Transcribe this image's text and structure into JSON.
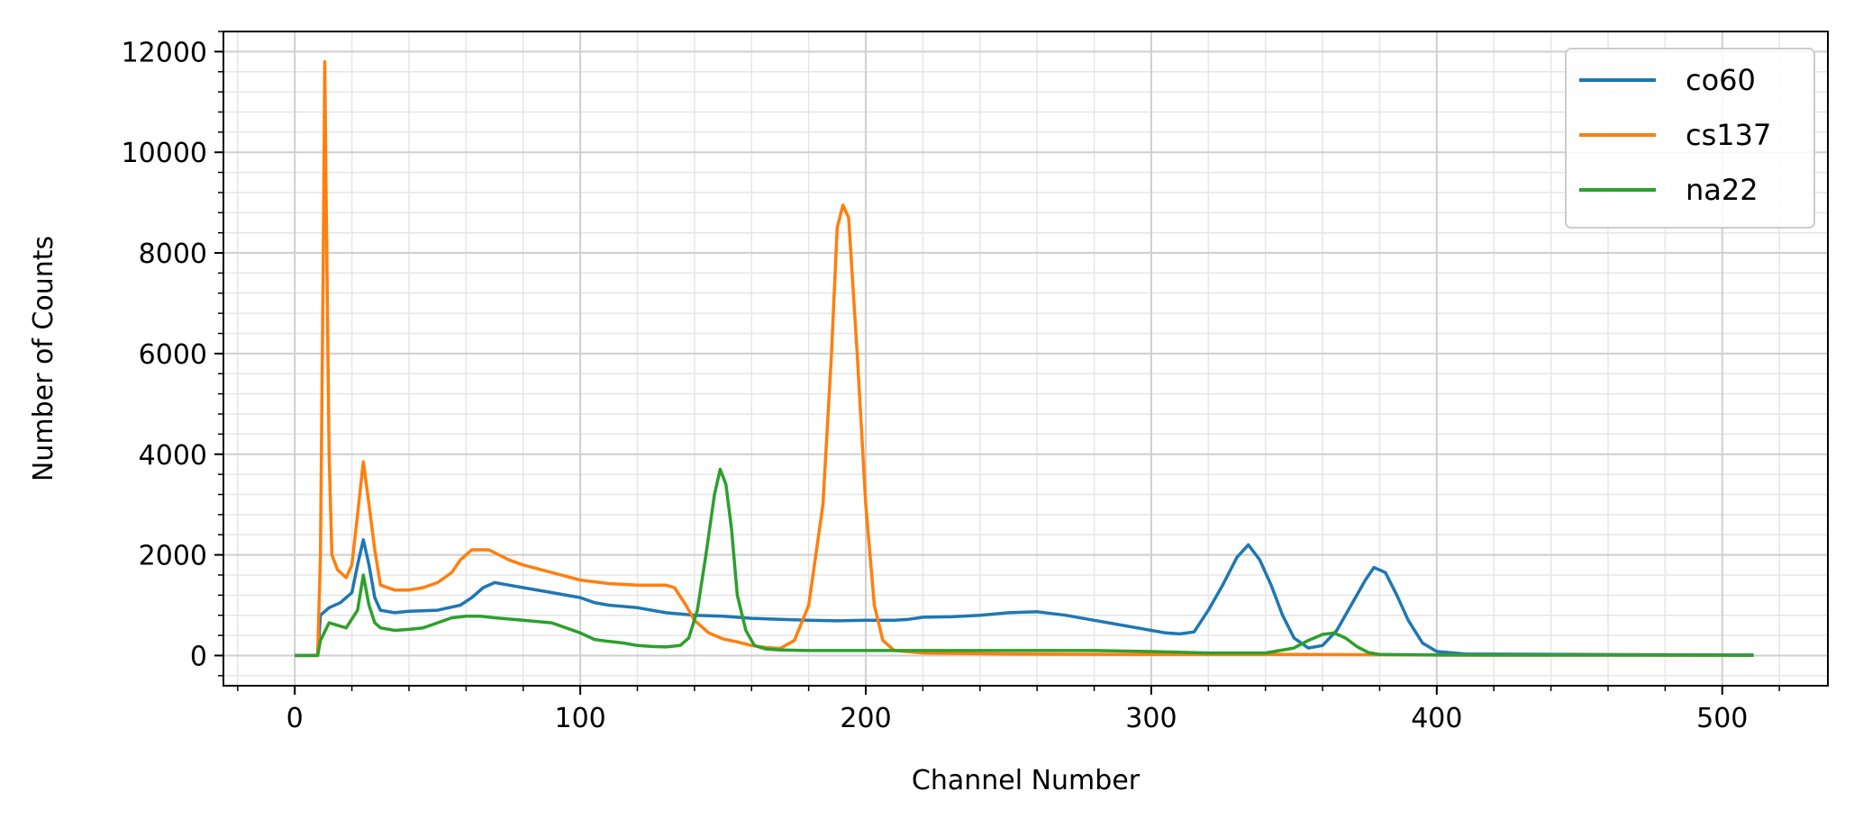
{
  "chart_data": {
    "type": "line",
    "title": "",
    "xlabel": "Channel Number",
    "ylabel": "Number of Counts",
    "xlim": [
      -25,
      537
    ],
    "ylim": [
      -600,
      12400
    ],
    "xticks": [
      0,
      100,
      200,
      300,
      400,
      500
    ],
    "yticks": [
      0,
      2000,
      4000,
      6000,
      8000,
      10000,
      12000
    ],
    "grid": "major and minor",
    "legend_position": "top-right",
    "series": [
      {
        "name": "co60",
        "color": "#1f77b4",
        "points": [
          [
            0,
            0
          ],
          [
            8,
            0
          ],
          [
            9,
            800
          ],
          [
            12,
            950
          ],
          [
            16,
            1050
          ],
          [
            20,
            1250
          ],
          [
            22,
            1800
          ],
          [
            24,
            2300
          ],
          [
            26,
            1800
          ],
          [
            28,
            1150
          ],
          [
            30,
            900
          ],
          [
            35,
            850
          ],
          [
            40,
            880
          ],
          [
            50,
            900
          ],
          [
            58,
            1000
          ],
          [
            62,
            1150
          ],
          [
            66,
            1350
          ],
          [
            70,
            1450
          ],
          [
            75,
            1400
          ],
          [
            80,
            1350
          ],
          [
            90,
            1250
          ],
          [
            100,
            1150
          ],
          [
            105,
            1050
          ],
          [
            110,
            1000
          ],
          [
            120,
            950
          ],
          [
            130,
            850
          ],
          [
            140,
            800
          ],
          [
            150,
            780
          ],
          [
            160,
            740
          ],
          [
            170,
            720
          ],
          [
            180,
            700
          ],
          [
            190,
            690
          ],
          [
            200,
            700
          ],
          [
            210,
            700
          ],
          [
            215,
            720
          ],
          [
            220,
            760
          ],
          [
            230,
            770
          ],
          [
            240,
            800
          ],
          [
            250,
            850
          ],
          [
            260,
            870
          ],
          [
            270,
            800
          ],
          [
            280,
            700
          ],
          [
            290,
            600
          ],
          [
            300,
            500
          ],
          [
            305,
            450
          ],
          [
            310,
            430
          ],
          [
            315,
            470
          ],
          [
            320,
            900
          ],
          [
            325,
            1400
          ],
          [
            330,
            1950
          ],
          [
            334,
            2200
          ],
          [
            338,
            1900
          ],
          [
            342,
            1400
          ],
          [
            346,
            800
          ],
          [
            350,
            350
          ],
          [
            355,
            150
          ],
          [
            360,
            200
          ],
          [
            365,
            500
          ],
          [
            370,
            1000
          ],
          [
            375,
            1500
          ],
          [
            378,
            1750
          ],
          [
            382,
            1650
          ],
          [
            386,
            1200
          ],
          [
            390,
            700
          ],
          [
            395,
            250
          ],
          [
            400,
            80
          ],
          [
            410,
            30
          ],
          [
            450,
            20
          ],
          [
            511,
            10
          ]
        ]
      },
      {
        "name": "cs137",
        "color": "#ff7f0e",
        "points": [
          [
            0,
            0
          ],
          [
            8,
            0
          ],
          [
            9,
            2000
          ],
          [
            10,
            8000
          ],
          [
            10.5,
            11800
          ],
          [
            11,
            9000
          ],
          [
            12,
            4000
          ],
          [
            13,
            2000
          ],
          [
            15,
            1700
          ],
          [
            18,
            1550
          ],
          [
            20,
            1800
          ],
          [
            22,
            2800
          ],
          [
            24,
            3850
          ],
          [
            26,
            3000
          ],
          [
            28,
            2100
          ],
          [
            30,
            1400
          ],
          [
            35,
            1300
          ],
          [
            40,
            1300
          ],
          [
            45,
            1350
          ],
          [
            50,
            1450
          ],
          [
            55,
            1650
          ],
          [
            58,
            1900
          ],
          [
            62,
            2100
          ],
          [
            68,
            2100
          ],
          [
            75,
            1900
          ],
          [
            80,
            1800
          ],
          [
            90,
            1650
          ],
          [
            100,
            1500
          ],
          [
            110,
            1430
          ],
          [
            120,
            1400
          ],
          [
            130,
            1400
          ],
          [
            133,
            1350
          ],
          [
            137,
            1000
          ],
          [
            140,
            700
          ],
          [
            145,
            450
          ],
          [
            150,
            330
          ],
          [
            155,
            270
          ],
          [
            160,
            200
          ],
          [
            165,
            160
          ],
          [
            170,
            140
          ],
          [
            175,
            300
          ],
          [
            180,
            1000
          ],
          [
            185,
            3000
          ],
          [
            188,
            6000
          ],
          [
            190,
            8500
          ],
          [
            192,
            8950
          ],
          [
            194,
            8700
          ],
          [
            197,
            6000
          ],
          [
            200,
            3000
          ],
          [
            203,
            1000
          ],
          [
            206,
            300
          ],
          [
            210,
            100
          ],
          [
            220,
            50
          ],
          [
            250,
            30
          ],
          [
            300,
            20
          ],
          [
            350,
            20
          ],
          [
            400,
            10
          ],
          [
            511,
            5
          ]
        ]
      },
      {
        "name": "na22",
        "color": "#2ca02c",
        "points": [
          [
            0,
            0
          ],
          [
            8,
            0
          ],
          [
            9,
            300
          ],
          [
            12,
            650
          ],
          [
            15,
            600
          ],
          [
            18,
            550
          ],
          [
            22,
            900
          ],
          [
            24,
            1600
          ],
          [
            26,
            1000
          ],
          [
            28,
            650
          ],
          [
            30,
            550
          ],
          [
            35,
            500
          ],
          [
            40,
            520
          ],
          [
            45,
            550
          ],
          [
            50,
            650
          ],
          [
            55,
            750
          ],
          [
            60,
            780
          ],
          [
            65,
            780
          ],
          [
            70,
            750
          ],
          [
            80,
            700
          ],
          [
            90,
            650
          ],
          [
            95,
            550
          ],
          [
            100,
            450
          ],
          [
            105,
            320
          ],
          [
            110,
            280
          ],
          [
            115,
            250
          ],
          [
            120,
            200
          ],
          [
            125,
            180
          ],
          [
            130,
            170
          ],
          [
            135,
            200
          ],
          [
            138,
            350
          ],
          [
            141,
            900
          ],
          [
            144,
            2000
          ],
          [
            147,
            3200
          ],
          [
            149,
            3700
          ],
          [
            151,
            3400
          ],
          [
            153,
            2500
          ],
          [
            155,
            1200
          ],
          [
            158,
            500
          ],
          [
            161,
            200
          ],
          [
            165,
            130
          ],
          [
            170,
            110
          ],
          [
            180,
            100
          ],
          [
            200,
            100
          ],
          [
            220,
            100
          ],
          [
            250,
            100
          ],
          [
            280,
            100
          ],
          [
            300,
            80
          ],
          [
            320,
            50
          ],
          [
            340,
            50
          ],
          [
            350,
            150
          ],
          [
            355,
            300
          ],
          [
            360,
            420
          ],
          [
            364,
            450
          ],
          [
            368,
            350
          ],
          [
            372,
            180
          ],
          [
            376,
            60
          ],
          [
            380,
            20
          ],
          [
            400,
            10
          ],
          [
            511,
            5
          ]
        ]
      }
    ]
  }
}
